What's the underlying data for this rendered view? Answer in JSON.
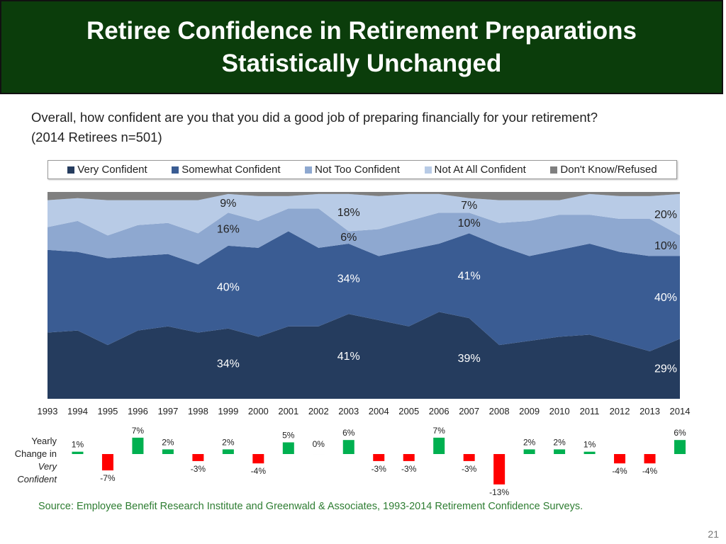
{
  "title": {
    "line1": "Retiree Confidence in Retirement Preparations",
    "line2": "Statistically Unchanged"
  },
  "question": {
    "line1": "Overall, how confident are you that you did a good job of preparing financially for your retirement?",
    "line2": "(2014 Retirees n=501)"
  },
  "legend": [
    {
      "label": "Very Confident",
      "color": "#253c5e"
    },
    {
      "label": "Somewhat Confident",
      "color": "#3a5c93"
    },
    {
      "label": "Not Too Confident",
      "color": "#8ea8d0"
    },
    {
      "label": "Not At All Confident",
      "color": "#b8cbe6"
    },
    {
      "label": "Don't Know/Refused",
      "color": "#7f7f7f"
    }
  ],
  "change_axis_label": [
    "Yearly",
    "Change in",
    "Very",
    "Confident"
  ],
  "source": "Source:  Employee Benefit Research Institute and Greenwald & Associates, 1993-2014 Retirement Confidence Surveys.",
  "page_number": "21",
  "chart_data": [
    {
      "type": "area",
      "stacked": true,
      "ylim": [
        0,
        100
      ],
      "x": [
        "1993",
        "1994",
        "1995",
        "1996",
        "1997",
        "1998",
        "1999",
        "2000",
        "2001",
        "2002",
        "2003",
        "2004",
        "2005",
        "2006",
        "2007",
        "2008",
        "2009",
        "2010",
        "2011",
        "2012",
        "2013",
        "2014"
      ],
      "series": [
        {
          "name": "Very Confident",
          "color": "#253c5e",
          "values": [
            32,
            33,
            26,
            33,
            35,
            32,
            34,
            30,
            35,
            35,
            41,
            38,
            35,
            42,
            39,
            26,
            28,
            30,
            31,
            27,
            23,
            29
          ]
        },
        {
          "name": "Somewhat Confident",
          "color": "#3a5c93",
          "values": [
            40,
            38,
            42,
            36,
            35,
            33,
            40,
            43,
            46,
            38,
            34,
            31,
            37,
            33,
            41,
            48,
            41,
            42,
            44,
            44,
            46,
            40
          ]
        },
        {
          "name": "Not Too Confident",
          "color": "#8ea8d0",
          "values": [
            11,
            15,
            11,
            15,
            15,
            15,
            16,
            13,
            11,
            19,
            6,
            13,
            14,
            15,
            10,
            11,
            17,
            17,
            14,
            16,
            18,
            10
          ]
        },
        {
          "name": "Not At All Confident",
          "color": "#b8cbe6",
          "values": [
            13,
            11,
            17,
            12,
            11,
            16,
            9,
            12,
            6,
            7,
            18,
            16,
            13,
            9,
            7,
            11,
            10,
            7,
            10,
            11,
            11,
            20
          ]
        },
        {
          "name": "Don't Know/Refused",
          "color": "#7f7f7f",
          "values": [
            4,
            3,
            4,
            4,
            4,
            4,
            1,
            2,
            2,
            1,
            1,
            2,
            1,
            1,
            3,
            4,
            4,
            4,
            1,
            2,
            2,
            1
          ]
        }
      ],
      "labels": [
        {
          "year": "1999",
          "series": "Very Confident",
          "text": "34%"
        },
        {
          "year": "1999",
          "series": "Somewhat Confident",
          "text": "40%"
        },
        {
          "year": "1999",
          "series": "Not Too Confident",
          "text": "16%"
        },
        {
          "year": "1999",
          "series": "Not At All Confident",
          "text": "9%"
        },
        {
          "year": "2003",
          "series": "Very Confident",
          "text": "41%"
        },
        {
          "year": "2003",
          "series": "Somewhat Confident",
          "text": "34%"
        },
        {
          "year": "2003",
          "series": "Not Too Confident",
          "text": "6%"
        },
        {
          "year": "2003",
          "series": "Not At All Confident",
          "text": "18%"
        },
        {
          "year": "2007",
          "series": "Very Confident",
          "text": "39%"
        },
        {
          "year": "2007",
          "series": "Somewhat Confident",
          "text": "41%"
        },
        {
          "year": "2007",
          "series": "Not Too Confident",
          "text": "10%"
        },
        {
          "year": "2007",
          "series": "Not At All Confident",
          "text": "7%"
        },
        {
          "year": "2014",
          "series": "Very Confident",
          "text": "29%"
        },
        {
          "year": "2014",
          "series": "Somewhat Confident",
          "text": "40%"
        },
        {
          "year": "2014",
          "series": "Not Too Confident",
          "text": "10%"
        },
        {
          "year": "2014",
          "series": "Not At All Confident",
          "text": "20%"
        }
      ]
    },
    {
      "type": "bar",
      "categories": [
        "1993",
        "1994",
        "1995",
        "1996",
        "1997",
        "1998",
        "1999",
        "2000",
        "2001",
        "2002",
        "2003",
        "2004",
        "2005",
        "2006",
        "2007",
        "2008",
        "2009",
        "2010",
        "2011",
        "2012",
        "2013",
        "2014"
      ],
      "values": [
        null,
        1,
        -7,
        7,
        2,
        -3,
        2,
        -4,
        5,
        0,
        6,
        -3,
        -3,
        7,
        -3,
        -13,
        2,
        2,
        1,
        -4,
        -4,
        6
      ],
      "value_labels": [
        "",
        "1%",
        "-7%",
        "7%",
        "2%",
        "-3%",
        "2%",
        "-4%",
        "5%",
        "0%",
        "6%",
        "-3%",
        "-3%",
        "7%",
        "-3%",
        "-13%",
        "2%",
        "2%",
        "1%",
        "-4%",
        "-4%",
        "6%"
      ],
      "positive_color": "#00b050",
      "negative_color": "#ff0000"
    }
  ]
}
